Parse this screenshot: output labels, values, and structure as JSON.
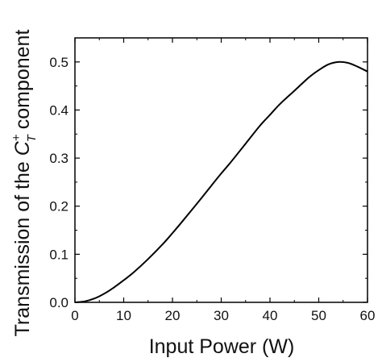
{
  "chart_data": {
    "type": "line",
    "title": "",
    "xlabel": "Input Power (W)",
    "ylabel": {
      "prefix": "Transmission of the ",
      "symbol": "C",
      "subscript": "T",
      "superscript": "+",
      "suffix": " component"
    },
    "xlim": [
      0,
      60
    ],
    "ylim": [
      0,
      0.55
    ],
    "xticks": [
      0,
      10,
      20,
      30,
      40,
      50,
      60
    ],
    "xtick_labels": [
      "0",
      "10",
      "20",
      "30",
      "40",
      "50",
      "60"
    ],
    "yticks": [
      0.0,
      0.1,
      0.2,
      0.3,
      0.4,
      0.5
    ],
    "ytick_labels": [
      "0.0",
      "0.1",
      "0.2",
      "0.3",
      "0.4",
      "0.5"
    ],
    "grid": false,
    "line_color": "#000000",
    "series": [
      {
        "x": [
          0,
          2,
          4,
          6,
          8,
          10,
          12,
          15,
          18,
          20,
          22,
          25,
          28,
          30,
          32,
          35,
          38,
          40,
          42,
          45,
          48,
          50,
          52,
          54,
          56,
          58,
          60
        ],
        "y": [
          0.0,
          0.002,
          0.008,
          0.018,
          0.031,
          0.046,
          0.062,
          0.09,
          0.121,
          0.144,
          0.168,
          0.205,
          0.243,
          0.268,
          0.292,
          0.33,
          0.368,
          0.39,
          0.412,
          0.44,
          0.468,
          0.483,
          0.495,
          0.5,
          0.498,
          0.49,
          0.48
        ]
      }
    ]
  }
}
